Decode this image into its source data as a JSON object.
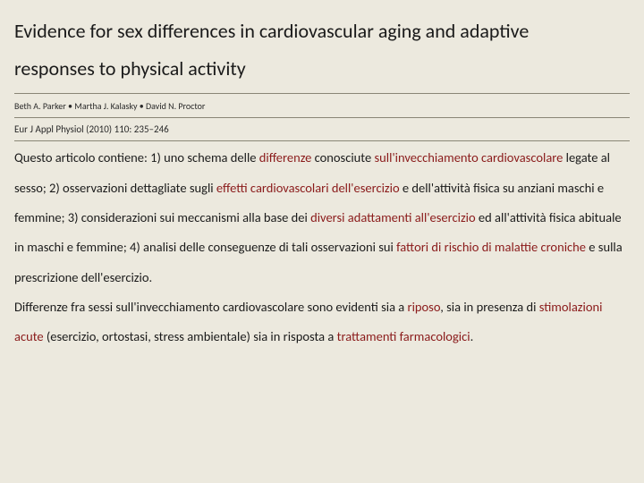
{
  "colors": {
    "background": "#ece9de",
    "text": "#1a1a1a",
    "highlight": "#8a1a1a",
    "rule": "#8a8676"
  },
  "title": {
    "line1": "Evidence for sex differences in cardiovascular aging and adaptive",
    "line2": "responses to physical activity"
  },
  "authors": "Beth A. Parker • Martha J. Kalasky • David N. Proctor",
  "citation": "Eur J Appl Physiol (2010) 110: 235–246",
  "body": {
    "p1_a": "Questo articolo contiene: 1) uno schema delle ",
    "p1_b": "differenze",
    "p1_c": " conosciute ",
    "p1_d": "sull'invecchiamento cardiovascolare",
    "p1_e": " legate al sesso; 2) osservazioni dettagliate sugli ",
    "p1_f": "effetti cardiovascolari dell'esercizio",
    "p1_g": " e dell'attività fisica su anziani maschi e femmine; 3) considerazioni sui meccanismi alla base dei ",
    "p1_h": "diversi adattamenti all'esercizio",
    "p1_i": " ed all'attività fisica abituale in maschi e femmine; 4) analisi delle conseguenze di tali osservazioni sui ",
    "p1_j": "fattori di rischio di malattie croniche ",
    "p1_k": " e sulla prescrizione dell'esercizio.",
    "p2_a": "Differenze fra sessi sull'invecchiamento cardiovascolare sono evidenti sia a ",
    "p2_b": "riposo",
    "p2_c": ", sia in presenza di ",
    "p2_d": "stimolazioni acute",
    "p2_e": " (esercizio, ortostasi, stress ambientale) sia in risposta a ",
    "p2_f": "trattamenti farmacologici",
    "p2_g": "."
  }
}
